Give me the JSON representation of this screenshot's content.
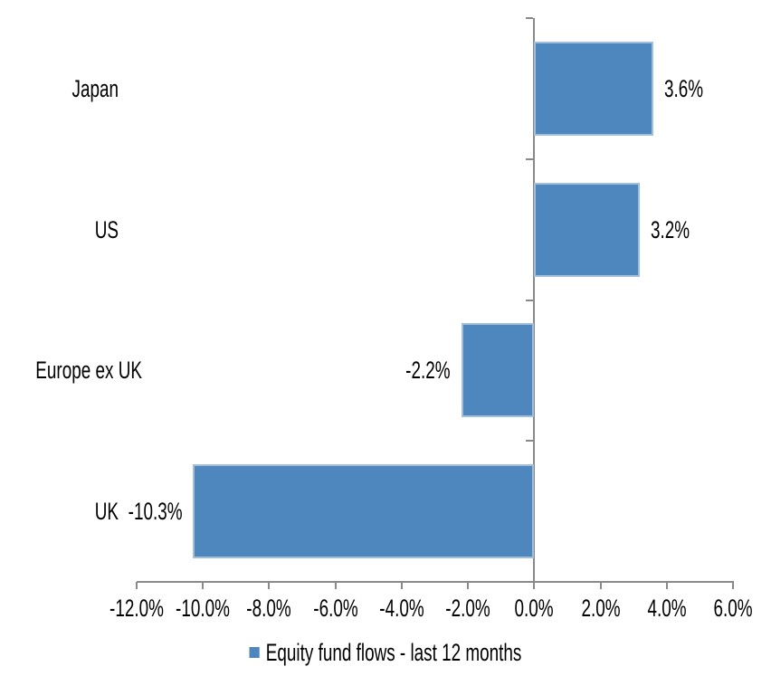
{
  "chart_data": {
    "type": "bar",
    "orientation": "horizontal",
    "title": "",
    "xlabel": "",
    "ylabel": "",
    "categories": [
      "Japan",
      "US",
      "Europe ex UK",
      "UK"
    ],
    "series": [
      {
        "name": "Equity fund flows - last 12 months",
        "values": [
          3.6,
          3.2,
          -2.2,
          -10.3
        ]
      }
    ],
    "value_labels": [
      "3.6%",
      "3.2%",
      "-2.2%",
      "-10.3%"
    ],
    "x_tick_labels": [
      "-12.0%",
      "-10.0%",
      "-8.0%",
      "-6.0%",
      "-4.0%",
      "-2.0%",
      "0.0%",
      "2.0%",
      "4.0%",
      "6.0%"
    ],
    "x_tick_values": [
      -12,
      -10,
      -8,
      -6,
      -4,
      -2,
      0,
      2,
      4,
      6
    ],
    "xlim": [
      -12,
      6
    ],
    "grid": false,
    "legend": {
      "position": "bottom",
      "label": "Equity fund flows - last 12 months"
    },
    "colors": {
      "bar_fill": "#4e87be",
      "bar_border": "#a3bedb",
      "axis_line": "#898989",
      "text": "#000000",
      "background": "#ffffff"
    }
  }
}
